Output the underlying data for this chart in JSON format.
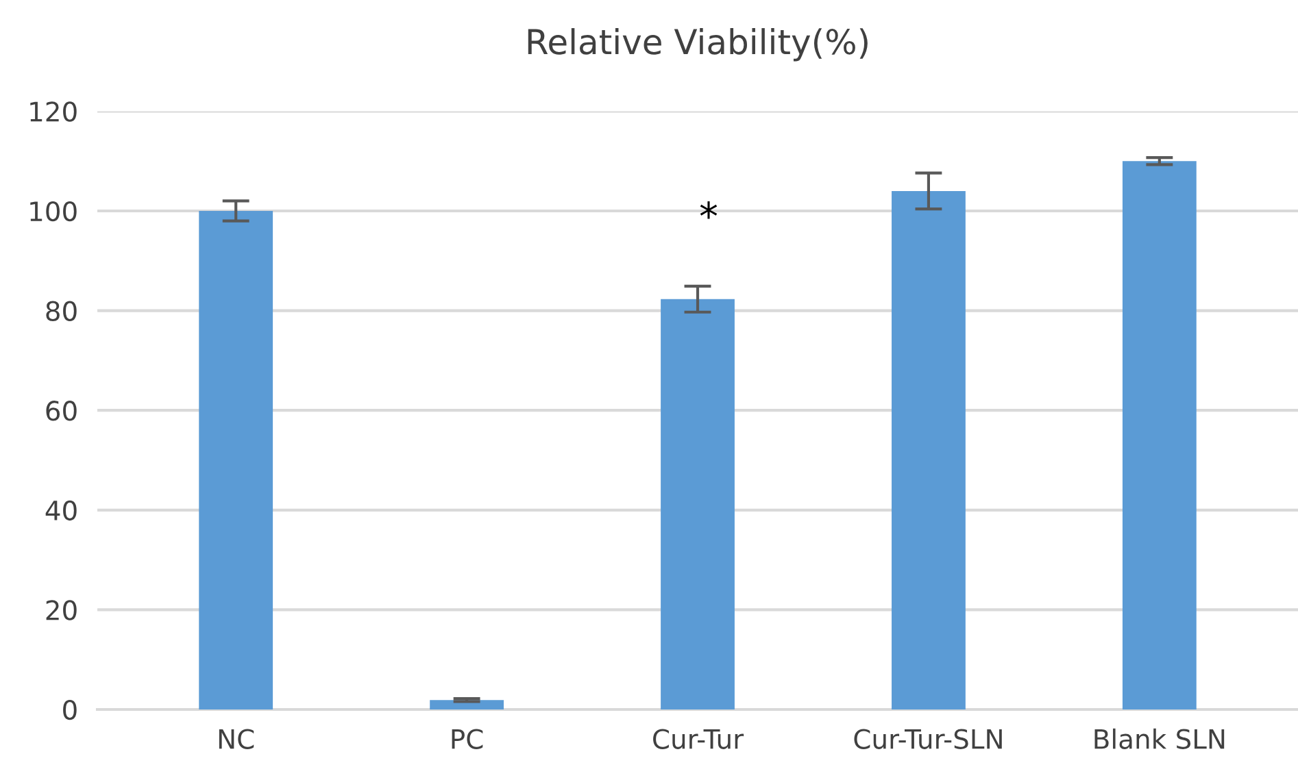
{
  "chart_data": {
    "type": "bar",
    "title": "Relative Viability(%)",
    "categories": [
      "NC",
      "PC",
      "Cur-Tur",
      "Cur-Tur-SLN",
      "Blank SLN"
    ],
    "values": [
      100,
      1.9,
      82.3,
      104.0,
      110.0
    ],
    "errors": [
      2.0,
      0.3,
      2.6,
      3.6,
      0.7
    ],
    "color": "#5b9bd5",
    "ylim": [
      0,
      120
    ],
    "yticks": [
      0,
      20,
      40,
      60,
      80,
      100,
      120
    ],
    "grid": "y",
    "annotations": [
      "*"
    ]
  }
}
